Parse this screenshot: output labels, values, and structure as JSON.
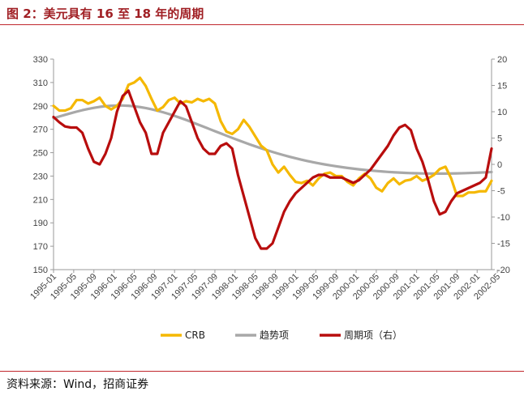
{
  "title": "图 2：美元具有 16 至 18 年的周期",
  "source": "资料来源：Wind，招商证券",
  "chart_data": {
    "type": "line",
    "x_labels": [
      "1995-01",
      "1995-05",
      "1995-09",
      "1996-01",
      "1996-05",
      "1996-09",
      "1997-01",
      "1997-05",
      "1997-09",
      "1998-01",
      "1998-05",
      "1998-09",
      "1999-01",
      "1999-05",
      "1999-09",
      "2000-01",
      "2000-05",
      "2000-09",
      "2001-01",
      "2001-05",
      "2001-09",
      "2002-01",
      "2002-05"
    ],
    "y_left": {
      "min": 150,
      "max": 330,
      "ticks": [
        150,
        170,
        190,
        210,
        230,
        250,
        270,
        290,
        310,
        330
      ]
    },
    "y_right": {
      "min": -20,
      "max": 20,
      "ticks": [
        -20,
        -15,
        -10,
        -5,
        0,
        5,
        10,
        15,
        20
      ]
    },
    "grid": false,
    "legend_position": "bottom",
    "series": [
      {
        "name": "CRB",
        "axis": "left",
        "color": "#f5b800",
        "values": [
          290,
          286,
          286,
          288,
          295,
          295,
          292,
          294,
          297,
          290,
          287,
          290,
          296,
          308,
          310,
          314,
          307,
          296,
          286,
          289,
          295,
          297,
          292,
          294,
          293,
          296,
          294,
          296,
          292,
          277,
          268,
          266,
          270,
          278,
          272,
          264,
          256,
          252,
          240,
          233,
          238,
          231,
          225,
          224,
          226,
          222,
          228,
          232,
          233,
          230,
          230,
          225,
          222,
          228,
          232,
          228,
          220,
          217,
          224,
          228,
          223,
          226,
          227,
          230,
          226,
          228,
          231,
          236,
          238,
          228,
          213,
          213,
          216,
          216,
          217,
          217,
          226
        ]
      },
      {
        "name": "趋势项",
        "axis": "left",
        "color": "#a8a8a8",
        "values": [
          279.52,
          280.95,
          282.38,
          283.77,
          285.08,
          286.3,
          287.4,
          288.35,
          289.14,
          289.74,
          290.14,
          290.34,
          290.32,
          290.09,
          289.64,
          288.99,
          288.15,
          287.12,
          285.92,
          284.57,
          283.08,
          281.47,
          279.76,
          277.97,
          276.11,
          274.22,
          272.29,
          270.34,
          268.4,
          266.46,
          264.53,
          262.63,
          260.77,
          258.95,
          257.17,
          255.45,
          253.79,
          252.19,
          250.65,
          249.18,
          247.79,
          246.46,
          245.21,
          244.03,
          242.92,
          241.88,
          240.91,
          240.0,
          239.16,
          238.37,
          237.65,
          236.97,
          236.35,
          235.77,
          235.25,
          234.76,
          234.32,
          233.92,
          233.56,
          233.25,
          232.97,
          232.73,
          232.53,
          232.37,
          232.25,
          232.17,
          232.13,
          232.12,
          232.15,
          232.21,
          232.3,
          232.43,
          232.59,
          232.77,
          232.98,
          233.21,
          233.46
        ]
      },
      {
        "name": "周期项（右）",
        "axis": "right",
        "color": "#b80d0d",
        "values": [
          9,
          8,
          7.2,
          7,
          7,
          6,
          3,
          0.5,
          0,
          2,
          5,
          10,
          13,
          14,
          11,
          8,
          6,
          2,
          2,
          6,
          8,
          10,
          12,
          11,
          8,
          5,
          3,
          2,
          2,
          3.5,
          4,
          3,
          -2,
          -6,
          -10,
          -14,
          -16,
          -16,
          -15,
          -12,
          -9,
          -7,
          -5.5,
          -4.5,
          -3.5,
          -2.5,
          -2,
          -2,
          -2.5,
          -2.5,
          -2.5,
          -3,
          -3.5,
          -3,
          -2,
          -1,
          0.5,
          2,
          3.5,
          5.5,
          7,
          7.5,
          6.5,
          3,
          0.5,
          -3,
          -7,
          -9.5,
          -9,
          -7,
          -5.5,
          -5,
          -4.5,
          -4,
          -3.5,
          -2.5,
          3
        ]
      }
    ]
  }
}
